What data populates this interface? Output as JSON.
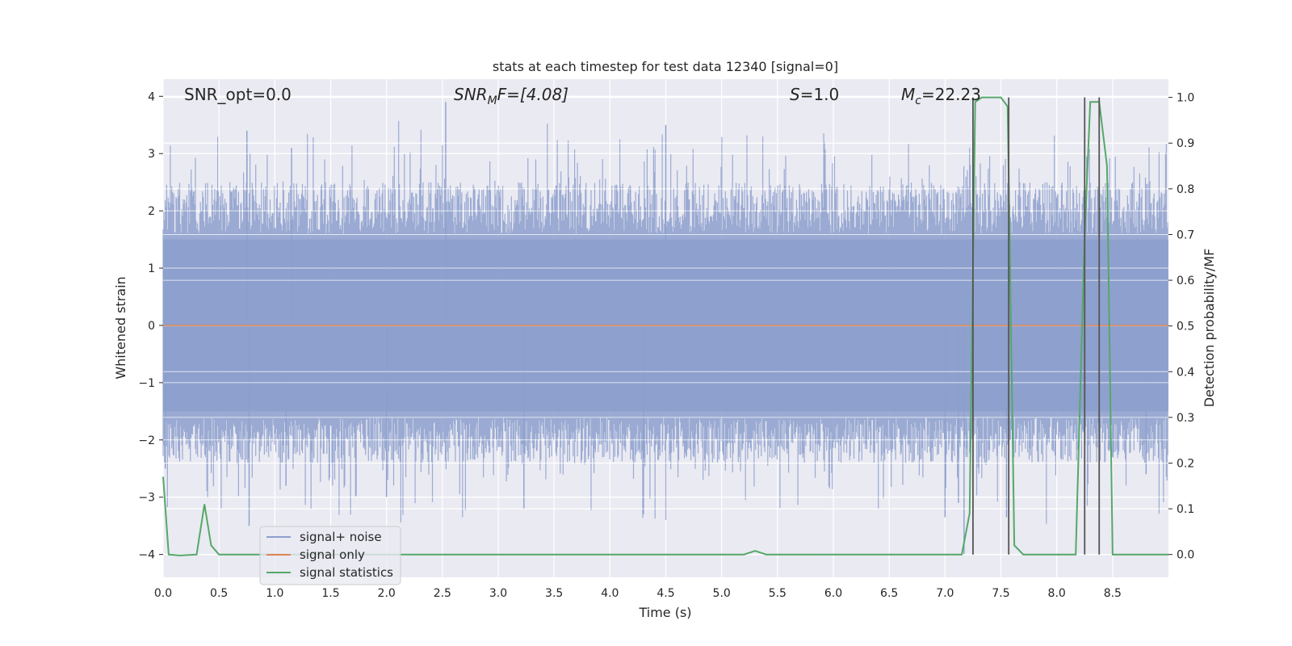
{
  "chart_data": {
    "type": "line",
    "title": "stats at each timestep for test data 12340 [signal=0]",
    "xlabel": "Time (s)",
    "ylabel": "Whitened strain",
    "y2label": "Detection probability/MF",
    "xlim": [
      0.0,
      9.0
    ],
    "ylim": [
      -4.4,
      4.3
    ],
    "y2lim": [
      -0.05,
      1.04
    ],
    "xticks": [
      0.0,
      0.5,
      1.0,
      1.5,
      2.0,
      2.5,
      3.0,
      3.5,
      4.0,
      4.5,
      5.0,
      5.5,
      6.0,
      6.5,
      7.0,
      7.5,
      8.0,
      8.5
    ],
    "xtick_labels": [
      "0.0",
      "0.5",
      "1.0",
      "1.5",
      "2.0",
      "2.5",
      "3.0",
      "3.5",
      "4.0",
      "4.5",
      "5.0",
      "5.5",
      "6.0",
      "6.5",
      "7.0",
      "7.5",
      "8.0",
      "8.5"
    ],
    "yticks": [
      4,
      3,
      2,
      1,
      0,
      -1,
      -2,
      -3,
      -4
    ],
    "ytick_labels": [
      "4",
      "3",
      "2",
      "1",
      "0",
      "−1",
      "−2",
      "−3",
      "−4"
    ],
    "y2ticks": [
      1.0,
      0.9,
      0.8,
      0.7,
      0.6,
      0.5,
      0.4,
      0.3,
      0.2,
      0.1,
      0.0
    ],
    "y2tick_labels": [
      "1.0",
      "0.9",
      "0.8",
      "0.7",
      "0.6",
      "0.5",
      "0.4",
      "0.3",
      "0.2",
      "0.1",
      "0.0"
    ],
    "grid": true,
    "legend_position": "lower-left",
    "annotations": {
      "snr_opt": "SNR_opt=0.0",
      "snr_mf_base": "SNR",
      "snr_mf_sub": "M",
      "snr_mf_rest": "F=[4.08]",
      "s_var": "S",
      "s_rest": "=1.0",
      "mc_var": "M",
      "mc_sub": "c",
      "mc_rest": "=22.23"
    },
    "series": [
      {
        "name": "signal+ noise",
        "color": "#8c9fcc",
        "axis": "left",
        "noise_envelope": {
          "typical_abs": 1.6,
          "max": 3.9,
          "min": -4.0
        },
        "spikes": [
          [
            0.02,
            -2.5
          ],
          [
            0.75,
            3.4
          ],
          [
            0.77,
            -3.5
          ],
          [
            1.15,
            3.1
          ],
          [
            1.1,
            -2.8
          ],
          [
            2.0,
            -3.0
          ],
          [
            2.53,
            3.9
          ],
          [
            3.23,
            -3.2
          ],
          [
            4.5,
            3.5
          ],
          [
            4.3,
            -3.3
          ],
          [
            7.0,
            -3.35
          ],
          [
            7.12,
            -3.1
          ],
          [
            7.17,
            -4.0
          ],
          [
            7.55,
            -3.35
          ],
          [
            8.8,
            -2.6
          ]
        ]
      },
      {
        "name": "signal only",
        "color": "#dd8452",
        "axis": "left",
        "x": [
          0.0,
          9.0
        ],
        "y": [
          0.0,
          0.0
        ]
      },
      {
        "name": "signal statistics",
        "color": "#55a868",
        "axis": "right",
        "x": [
          0.0,
          0.05,
          0.15,
          0.3,
          0.37,
          0.43,
          0.5,
          5.2,
          5.3,
          5.4,
          5.5,
          7.15,
          7.22,
          7.27,
          7.33,
          7.5,
          7.56,
          7.62,
          7.7,
          8.17,
          8.25,
          8.3,
          8.38,
          8.45,
          8.5,
          8.55,
          9.0
        ],
        "y": [
          0.17,
          0.0,
          -0.002,
          0.0,
          0.11,
          0.02,
          0.0,
          0.0,
          0.008,
          0.0,
          0.0,
          0.0,
          0.09,
          0.99,
          1.0,
          1.0,
          0.98,
          0.02,
          0.0,
          0.0,
          0.7,
          0.99,
          0.99,
          0.85,
          0.0,
          0.0,
          0.0
        ]
      }
    ],
    "vertical_lines": [
      7.25,
      7.57,
      8.25,
      8.38
    ],
    "vertical_line_range": [
      0.0,
      1.0
    ]
  }
}
